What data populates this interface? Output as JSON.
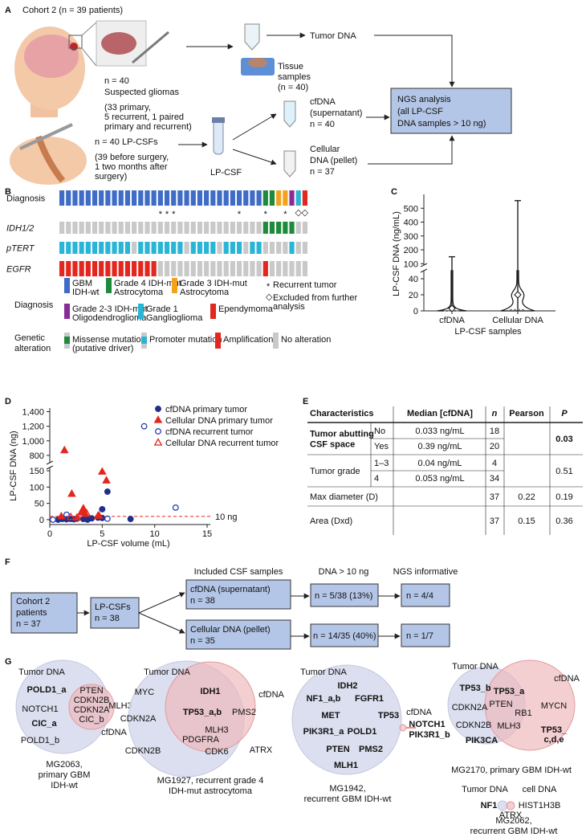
{
  "panel_labels": [
    "A",
    "B",
    "C",
    "D",
    "E",
    "F",
    "G"
  ],
  "panel_a": {
    "cohort": "Cohort 2 (n = 39 patients)",
    "tissue_count": "n = 40",
    "tissue_title": "Suspected gliomas",
    "tissue_detail": [
      "(33 primary,",
      "5 recurrent, 1 paired",
      "primary and recurrent)"
    ],
    "tissue_samples": [
      "Tissue",
      "samples",
      "(n = 40)"
    ],
    "tumor_dna": "Tumor DNA",
    "csf_count": "n = 40 LP-CSFs",
    "csf_detail": [
      "(39 before surgery,",
      "1 two months after",
      "surgery)"
    ],
    "lp_csf": "LP-CSF",
    "cfdna": [
      "cfDNA",
      "(supernatant)",
      "n = 40"
    ],
    "cellular": [
      "Cellular",
      "DNA (pellet)",
      "n = 37"
    ],
    "ngs": [
      "NGS analysis",
      "(all LP-CSF",
      "DNA samples > 10 ng)"
    ]
  },
  "panel_b": {
    "row_labels": [
      "Diagnosis",
      "IDH1/2",
      "pTERT",
      "EGFR"
    ],
    "diagnosis_legend_title": "Diagnosis",
    "diagnosis_legend": [
      {
        "label": [
          "GBM",
          "IDH-wt"
        ],
        "color": "#3f6cc6"
      },
      {
        "label": [
          "Grade 4 IDH-mut",
          "Astrocytoma"
        ],
        "color": "#1d8a3c"
      },
      {
        "label": [
          "Grade 3 IDH-mut",
          "Astrocytoma"
        ],
        "color": "#f4a21d"
      },
      {
        "label": [
          "Grade 2-3 IDH-mut",
          "Oligodendroglioma"
        ],
        "color": "#8a2b9a"
      },
      {
        "label": [
          "Grade 1",
          "Ganglioglioma"
        ],
        "color": "#29b5d6"
      },
      {
        "label": [
          "Ependymoma"
        ],
        "color": "#e3261e"
      }
    ],
    "markers": {
      "recurrent_symbol": "*",
      "recurrent_label": [
        "Recurrent tumor"
      ],
      "excluded_symbol": "◇",
      "excluded_label": [
        "Excluded from further",
        "analysis"
      ],
      "recurrent": [
        15,
        16,
        17,
        27,
        31,
        34
      ],
      "excluded": [
        36,
        37
      ]
    },
    "genetic_legend_title": [
      "Genetic",
      "alteration"
    ],
    "genetic_legend": [
      {
        "label": [
          "Missense mutation",
          "(putative driver)"
        ],
        "color": "#1d8a3c"
      },
      {
        "label": [
          "Promoter mutation"
        ],
        "color": "#29b5d6"
      },
      {
        "label": [
          "Amplification"
        ],
        "color": "#e3261e"
      },
      {
        "label": [
          "No alteration"
        ],
        "color": "#c9c9c9"
      }
    ],
    "diagnosis": [
      0,
      0,
      0,
      0,
      0,
      0,
      0,
      0,
      0,
      0,
      0,
      0,
      0,
      0,
      0,
      0,
      0,
      0,
      0,
      0,
      0,
      0,
      0,
      0,
      0,
      0,
      0,
      0,
      0,
      0,
      0,
      1,
      1,
      2,
      2,
      3,
      4,
      5
    ],
    "idh": [
      3,
      3,
      3,
      3,
      3,
      3,
      3,
      3,
      3,
      3,
      3,
      3,
      3,
      3,
      3,
      3,
      3,
      3,
      3,
      3,
      3,
      3,
      3,
      3,
      3,
      3,
      3,
      3,
      3,
      3,
      3,
      0,
      0,
      0,
      0,
      0,
      3,
      3
    ],
    "ptert": [
      1,
      1,
      1,
      1,
      1,
      1,
      1,
      1,
      1,
      1,
      1,
      3,
      1,
      1,
      1,
      1,
      1,
      1,
      1,
      3,
      1,
      1,
      1,
      1,
      3,
      1,
      1,
      1,
      3,
      1,
      1,
      3,
      3,
      3,
      3,
      1,
      3,
      3
    ],
    "egfr": [
      2,
      2,
      2,
      2,
      2,
      2,
      2,
      2,
      2,
      2,
      2,
      2,
      2,
      2,
      2,
      3,
      3,
      3,
      3,
      3,
      3,
      3,
      3,
      3,
      3,
      3,
      3,
      3,
      3,
      3,
      3,
      2,
      3,
      3,
      3,
      3,
      3,
      3
    ]
  },
  "panel_c": {
    "ylabel": "LP-CSF DNA (ng/mL)",
    "xlabel": "LP-CSF samples",
    "categories": [
      "cfDNA",
      "Cellular DNA"
    ],
    "max": [
      150,
      555
    ],
    "mean": [
      3,
      20
    ],
    "median": [
      0.3,
      1.5
    ],
    "ylim_lower": [
      0,
      50
    ],
    "yticks_lower": [
      0,
      20,
      40
    ],
    "ylim_upper": [
      90,
      600
    ],
    "yticks_upper": [
      100,
      200,
      300,
      400,
      500
    ]
  },
  "panel_d": {
    "ylabel": "LP-CSF DNA (ng)",
    "xlabel": "LP-CSF volume (mL)",
    "xlim": [
      0,
      15
    ],
    "xticks": [
      0,
      5,
      10,
      15
    ],
    "ylim_lower": [
      -15,
      160
    ],
    "yticks_lower": [
      0,
      50,
      100,
      150
    ],
    "ylim_upper": [
      700,
      1450
    ],
    "yticks_upper": [
      800,
      {
        "value": 1000,
        "label": "1,000"
      },
      {
        "value": 1200,
        "label": "1,200"
      },
      {
        "value": 1400,
        "label": "1,400"
      }
    ],
    "threshold": {
      "value": 10,
      "label": "10 ng",
      "color": "#e3261e"
    },
    "series": [
      {
        "name": "cfDNA primary tumor",
        "color": "#1f2f8a",
        "marker": "circle",
        "filled": true,
        "x": [
          5.5,
          5.0,
          5.0,
          0.8,
          1.2,
          2.3,
          2.6,
          3.2,
          3.6,
          4.0,
          4.6,
          1.6,
          2.0,
          7.7
        ],
        "y": [
          86,
          32,
          5,
          0,
          2,
          1,
          3,
          2,
          0,
          4,
          6,
          1,
          2,
          2
        ]
      },
      {
        "name": "Cellular DNA primary tumor",
        "color": "#e3261e",
        "marker": "triangle",
        "filled": true,
        "x": [
          1.4,
          2.1,
          5.0,
          5.4,
          3.2,
          3.4,
          1.1,
          4.6,
          2.6,
          3.0
        ],
        "y": [
          870,
          79,
          147,
          120,
          34,
          17,
          10,
          12,
          6,
          22
        ]
      },
      {
        "name": "cfDNA recurrent tumor",
        "color": "#2a3fb0",
        "marker": "circle",
        "filled": false,
        "x": [
          9.0,
          12.0,
          0.3,
          1.6,
          5.5
        ],
        "y": [
          1200,
          37,
          0,
          15,
          3
        ]
      },
      {
        "name": "Cellular DNA recurrent tumor",
        "color": "#e3261e",
        "marker": "triangle",
        "filled": false,
        "x": [
          3.2,
          3.5,
          2.0,
          4.7
        ],
        "y": [
          32,
          20,
          8,
          12
        ]
      }
    ]
  },
  "panel_e": {
    "headers": [
      "Characteristics",
      "Median [cfDNA]",
      "n",
      "Pearson",
      "P"
    ],
    "groups": [
      {
        "name": [
          "Tumor abutting",
          "CSF space"
        ],
        "highlight": true,
        "levels": [
          {
            "level": "No",
            "median": "0.033 ng/mL",
            "n": 18
          },
          {
            "level": "Yes",
            "median": "0.39 ng/mL",
            "n": 20
          }
        ],
        "p": 0.03
      },
      {
        "name": [
          "Tumor grade"
        ],
        "highlight": false,
        "levels": [
          {
            "level": "1–3",
            "median": "0.04 ng/mL",
            "n": 4
          },
          {
            "level": "4",
            "median": "0.053 ng/mL",
            "n": 34
          }
        ],
        "p": 0.51
      },
      {
        "name": [
          "Max diameter (D)"
        ],
        "highlight": false,
        "n": 37,
        "pearson": 0.22,
        "p": 0.19
      },
      {
        "name": [
          "Area (Dxd)"
        ],
        "highlight": false,
        "n": 37,
        "pearson": 0.15,
        "p": 0.36
      }
    ]
  },
  "panel_f": {
    "included_title": "Included CSF samples",
    "dna_title": "DNA > 10 ng",
    "ngs_title": "NGS informative",
    "cohort": [
      "Cohort 2",
      "patients",
      "n = 37"
    ],
    "lpcsf": [
      "LP-CSFs",
      "n = 38"
    ],
    "cfdna": [
      "cfDNA (supernatant)",
      "n = 38"
    ],
    "cellular": [
      "Cellular DNA (pellet)",
      "n = 35"
    ],
    "cfdna_dna": "n = 5/38 (13%)",
    "cellular_dna": "n = 14/35 (40%)",
    "cfdna_ngs": "n = 4/4",
    "cellular_ngs": "n = 1/7"
  },
  "panel_g": [
    {
      "left_label": "Tumor DNA",
      "right_label": "cfDNA",
      "genes": [
        {
          "text": "POLD1_a",
          "bold": true
        },
        {
          "text": "NOTCH1",
          "bold": false
        },
        {
          "text": "CIC_a",
          "bold": true
        },
        {
          "text": "POLD1_b",
          "bold": false
        },
        {
          "text": "PTEN",
          "bold": false
        },
        {
          "text": "CDKN2B",
          "bold": false
        },
        {
          "text": "CDKN2A",
          "bold": false
        },
        {
          "text": "CIC_b",
          "bold": false
        },
        {
          "text": "MLH3",
          "bold": false
        }
      ],
      "caption": [
        "MG2063,",
        "primary GBM",
        "IDH-wt"
      ]
    },
    {
      "left_label": "Tumor DNA",
      "right_label": "cfDNA",
      "genes": [
        {
          "text": "MYC",
          "bold": false
        },
        {
          "text": "CDKN2A",
          "bold": false
        },
        {
          "text": "CDKN2B",
          "bold": false
        },
        {
          "text": "IDH1",
          "bold": true
        },
        {
          "text": "TP53_a,b",
          "bold": true
        },
        {
          "text": "PMS2",
          "bold": false
        },
        {
          "text": "MLH3",
          "bold": false
        },
        {
          "text": "PDGFRA",
          "bold": false
        },
        {
          "text": "CDK6",
          "bold": false
        },
        {
          "text": "ATRX",
          "bold": false
        }
      ],
      "caption": [
        "MG1927, recurrent grade 4",
        "IDH-mut astrocytoma"
      ]
    },
    {
      "left_label": "Tumor DNA",
      "right_label": "cfDNA",
      "genes": [
        {
          "text": "IDH2",
          "bold": true
        },
        {
          "text": "NF1_a,b",
          "bold": true
        },
        {
          "text": "FGFR1",
          "bold": true
        },
        {
          "text": "MET",
          "bold": true
        },
        {
          "text": "TP53",
          "bold": true
        },
        {
          "text": "PIK3R1_a",
          "bold": true
        },
        {
          "text": "POLD1",
          "bold": true
        },
        {
          "text": "PTEN",
          "bold": true
        },
        {
          "text": "PMS2",
          "bold": true
        },
        {
          "text": "MLH1",
          "bold": true
        },
        {
          "text": "NOTCH1",
          "bold": true
        },
        {
          "text": "PIK3R1_b",
          "bold": true
        }
      ],
      "caption": [
        "MG1942,",
        "recurrent GBM IDH-wt"
      ]
    },
    {
      "left_label": "Tumor DNA",
      "right_label": "cfDNA",
      "genes": [
        {
          "text": "TP53_b",
          "bold": true
        },
        {
          "text": "CDKN2A",
          "bold": false
        },
        {
          "text": "CDKN2B",
          "bold": false
        },
        {
          "text": "PIK3CA",
          "bold": true
        },
        {
          "text": "TP53_a",
          "bold": true
        },
        {
          "text": "PTEN",
          "bold": false
        },
        {
          "text": "RB1",
          "bold": false
        },
        {
          "text": "MLH3",
          "bold": false
        },
        {
          "text": "MYCN",
          "bold": false
        },
        {
          "text": "TP53_",
          "bold": true
        },
        {
          "text": "c,d,e",
          "bold": true
        }
      ],
      "caption": [
        "MG2170, primary GBM IDH-wt"
      ]
    },
    {
      "left_label": "Tumor DNA",
      "right_label": "cell DNA",
      "genes": [
        {
          "text": "NF1",
          "bold": true
        },
        {
          "text": "HIST1H3B",
          "bold": false
        },
        {
          "text": "ATRX",
          "bold": false
        }
      ],
      "caption": [
        "MG2062,",
        "recurrent GBM IDH-wt"
      ]
    }
  ]
}
